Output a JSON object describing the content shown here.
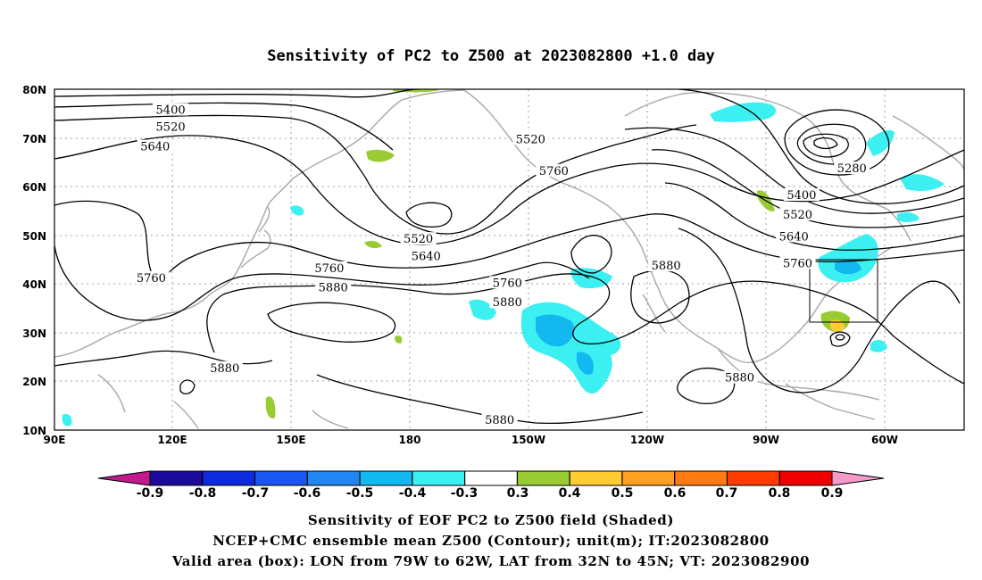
{
  "title": "Sensitivity of PC2 to Z500 at 2023082800 +1.0 day",
  "axes": {
    "lon_ticks": [
      "90E",
      "120E",
      "150E",
      "180",
      "150W",
      "120W",
      "90W",
      "60W"
    ],
    "lat_ticks": [
      "80N",
      "70N",
      "60N",
      "50N",
      "40N",
      "30N",
      "20N",
      "10N"
    ]
  },
  "contour_labels": [
    {
      "text": "5400",
      "lon": 120,
      "lat": 75.5
    },
    {
      "text": "5520",
      "lon": 120,
      "lat": 72.0
    },
    {
      "text": "5640",
      "lon": 116,
      "lat": 68.0
    },
    {
      "text": "5760",
      "lon": 115,
      "lat": 41.0
    },
    {
      "text": "5880",
      "lon": 134,
      "lat": 22.5
    },
    {
      "text": "5760",
      "lon": 161,
      "lat": 43.0
    },
    {
      "text": "5880",
      "lon": 162,
      "lat": 39.0
    },
    {
      "text": "5520",
      "lon": 184,
      "lat": 49.0
    },
    {
      "text": "5640",
      "lon": 186,
      "lat": 45.5
    },
    {
      "text": "5520",
      "lon": 213,
      "lat": 69.5
    },
    {
      "text": "5760",
      "lon": 219,
      "lat": 63.0
    },
    {
      "text": "5760",
      "lon": 207,
      "lat": 40.0
    },
    {
      "text": "5880",
      "lon": 207,
      "lat": 36.0
    },
    {
      "text": "5880",
      "lon": 248,
      "lat": 43.5
    },
    {
      "text": "5880",
      "lon": 205,
      "lat": 11.8
    },
    {
      "text": "5280",
      "lon": 296,
      "lat": 63.5
    },
    {
      "text": "5400",
      "lon": 283,
      "lat": 58.0
    },
    {
      "text": "5520",
      "lon": 282,
      "lat": 54.0
    },
    {
      "text": "5640",
      "lon": 281,
      "lat": 49.5
    },
    {
      "text": "5760",
      "lon": 282,
      "lat": 44.0
    },
    {
      "text": "5880",
      "lon": 267,
      "lat": 20.5
    }
  ],
  "colorbar": {
    "labels": [
      "-0.9",
      "-0.8",
      "-0.7",
      "-0.6",
      "-0.5",
      "-0.4",
      "-0.3",
      "0.3",
      "0.4",
      "0.5",
      "0.6",
      "0.7",
      "0.8",
      "0.9"
    ],
    "colors": [
      "#1b0a9c",
      "#0d2bdc",
      "#1a56f0",
      "#1f86f2",
      "#14b8f0",
      "#3cf0f2",
      "#ffffff",
      "#99cc33",
      "#ffcc33",
      "#ffa020",
      "#ff7a10",
      "#ff3c00",
      "#ee0000"
    ],
    "low_end_color": "#c01a8c",
    "high_end_color": "#f39ac8"
  },
  "caption": [
    "Sensitivity of EOF PC2 to Z500 field (Shaded)",
    "NCEP+CMC ensemble mean Z500 (Contour); unit(m); IT:2023082800",
    "Valid area (box): LON from 79W to 62W, LAT from 32N to 45N; VT: 2023082900"
  ],
  "valid_box": {
    "lon_min": 281,
    "lon_max": 298,
    "lat_min": 32,
    "lat_max": 45
  }
}
